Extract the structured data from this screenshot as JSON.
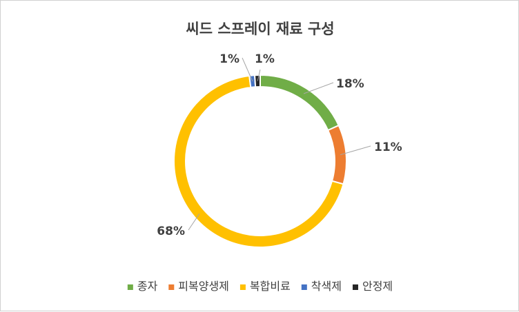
{
  "chart_data": {
    "type": "pie",
    "title": "씨드 스프레이 재료 구성",
    "categories": [
      "종자",
      "피복양생제",
      "복합비료",
      "착색제",
      "안정제"
    ],
    "values": [
      18,
      11,
      68,
      1,
      1
    ],
    "value_labels": [
      "18%",
      "11%",
      "68%",
      "1%",
      "1%"
    ],
    "colors": [
      "#70AD47",
      "#ED7D31",
      "#FFC000",
      "#4472C4",
      "#262626"
    ],
    "legend_position": "bottom",
    "style": "doughnut"
  }
}
